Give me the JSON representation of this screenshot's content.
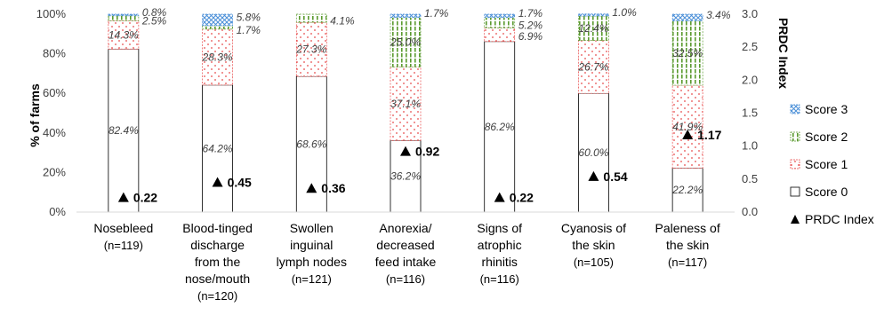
{
  "chart_data": {
    "type": "bar",
    "stacked": true,
    "categories": [
      [
        "Nosebleed",
        "(n=119)"
      ],
      [
        "Blood-tinged",
        "discharge",
        "from the",
        "nose/mouth",
        "(n=120)"
      ],
      [
        "Swollen",
        "inguinal",
        "lymph nodes",
        "(n=121)"
      ],
      [
        "Anorexia/",
        "decreased",
        "feed intake",
        "(n=116)"
      ],
      [
        "Signs of",
        "atrophic",
        "rhinitis",
        "(n=116)"
      ],
      [
        "Cyanosis of",
        "the skin",
        "(n=105)"
      ],
      [
        "Paleness of",
        "the skin",
        "(n=117)"
      ]
    ],
    "series": [
      {
        "name": "Score 0",
        "values": [
          82.4,
          64.2,
          68.6,
          36.2,
          86.2,
          60.0,
          22.2
        ],
        "labels": [
          "82.4%",
          "64.2%",
          "68.6%",
          "36.2%",
          "86.2%",
          "60.0%",
          "22.2%"
        ]
      },
      {
        "name": "Score 1",
        "values": [
          14.3,
          28.3,
          27.3,
          37.1,
          6.9,
          26.7,
          41.9
        ],
        "labels": [
          "14.3%",
          "28.3%",
          "27.3%",
          "37.1%",
          "6.9%",
          "26.7%",
          "41.9%"
        ]
      },
      {
        "name": "Score 2",
        "values": [
          2.5,
          1.7,
          4.1,
          25.0,
          5.2,
          12.4,
          32.5
        ],
        "labels": [
          "2.5%",
          "1.7%",
          "4.1%",
          "25.0%",
          "5.2%",
          "12.4%",
          "32.5%"
        ]
      },
      {
        "name": "Score 3",
        "values": [
          0.8,
          5.8,
          0.0,
          1.7,
          1.7,
          1.0,
          3.4
        ],
        "labels": [
          "0.8%",
          "5.8%",
          "",
          "1.7%",
          "1.7%",
          "1.0%",
          "3.4%"
        ]
      }
    ],
    "prdc_index": {
      "name": "PRDC Index",
      "values": [
        0.22,
        0.45,
        0.36,
        0.92,
        0.22,
        0.54,
        1.17
      ],
      "labels": [
        "0.22",
        "0.45",
        "0.36",
        "0.92",
        "0.22",
        "0.54",
        "1.17"
      ]
    },
    "ylabel": "% of farms",
    "y2label": "PRDC Index",
    "ylim": [
      0,
      100
    ],
    "y2lim": [
      0,
      3
    ],
    "yticks": [
      "0%",
      "20%",
      "40%",
      "60%",
      "80%",
      "100%"
    ],
    "y2ticks": [
      "0.0",
      "0.5",
      "1.0",
      "1.5",
      "2.0",
      "2.5",
      "3.0"
    ],
    "legend": [
      "Score 3",
      "Score 2",
      "Score 1",
      "Score 0",
      "PRDC Index"
    ],
    "legend_position": "right",
    "colors": {
      "score0": "#000000",
      "score1": "#e84a4a",
      "score2": "#5a9a2e",
      "score3": "#4a8fd8",
      "axis": "#d9d9d9",
      "text": "#404040"
    }
  }
}
